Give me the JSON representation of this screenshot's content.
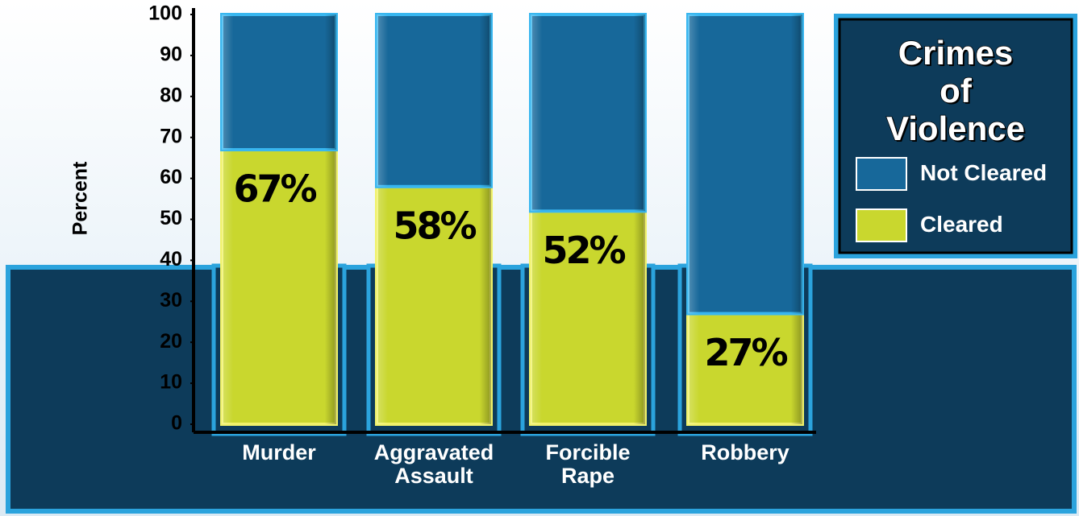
{
  "chart_data": {
    "type": "stacked_bar",
    "title": "Crimes of Violence",
    "y_label": "Percent",
    "categories": [
      "Murder",
      "Aggravated Assault",
      "Forcible Rape",
      "Robbery"
    ],
    "series": [
      {
        "name": "Not Cleared",
        "color": "#17689a",
        "values": [
          33,
          42,
          48,
          73
        ]
      },
      {
        "name": "Cleared",
        "color": "#c9d72e",
        "values": [
          67,
          58,
          52,
          27
        ],
        "value_labels": [
          "67%",
          "58%",
          "52%",
          "27%"
        ]
      }
    ],
    "ylim": [
      0,
      100
    ],
    "yticks": [
      0,
      10,
      20,
      30,
      40,
      50,
      60,
      70,
      80,
      90,
      100
    ]
  }
}
